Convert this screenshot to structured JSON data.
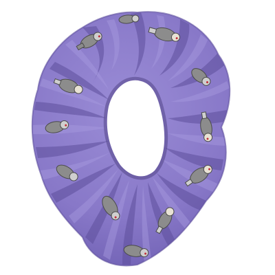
{
  "image": {
    "subject": "fabric-hair-scrunchie",
    "pattern_motif": "sock-monkey-print",
    "colors": {
      "background": "#ffffff",
      "fabric_base": "#8878c8",
      "fabric_light": "#9a8cd6",
      "fabric_shadow": "#5e4f9c",
      "fabric_deep_shadow": "#443878",
      "motif_gray": "#8c8c8c",
      "motif_dark": "#4a4a4a",
      "motif_light": "#cfcfcf",
      "motif_accent_red": "#c0303a",
      "motif_cream": "#e8e2d4"
    }
  }
}
